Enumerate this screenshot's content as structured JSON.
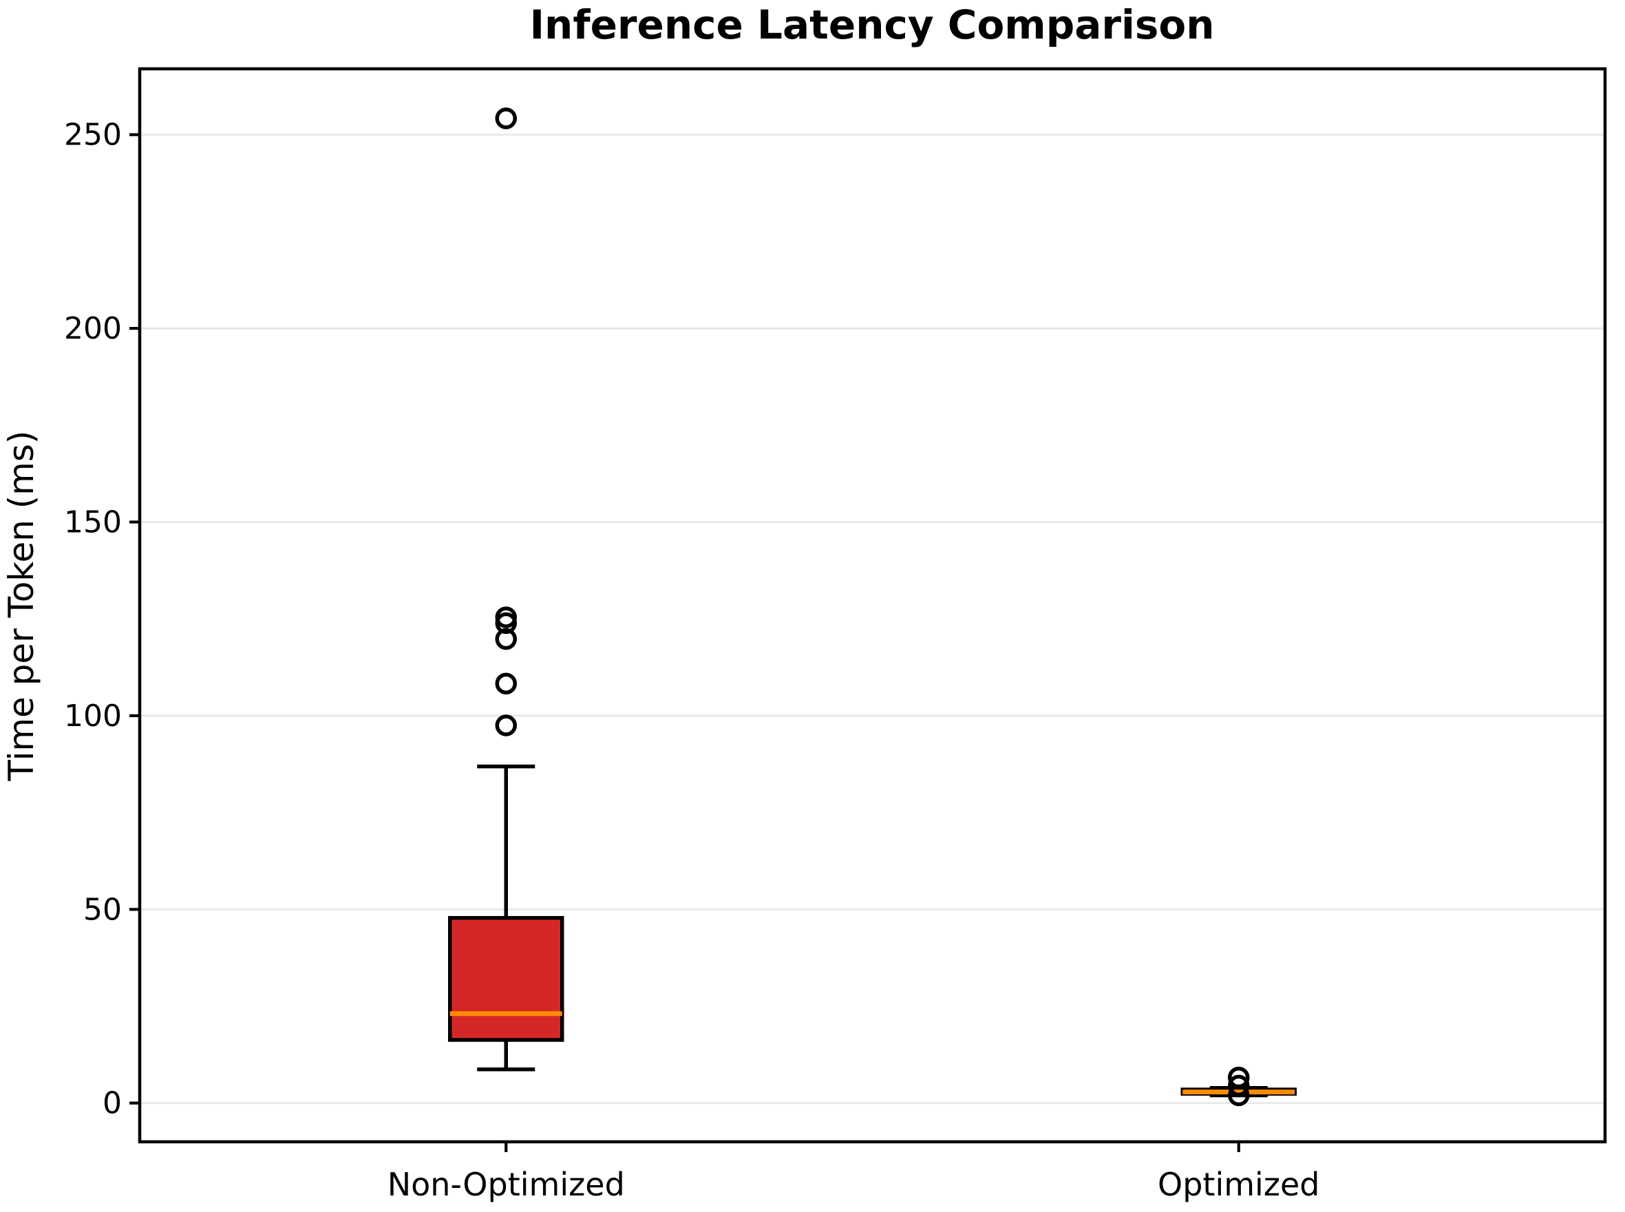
{
  "chart_data": {
    "type": "boxplot",
    "title": "Inference Latency Comparison",
    "ylabel": "Time per Token (ms)",
    "xlabel": "",
    "categories": [
      "Non-Optimized",
      "Optimized"
    ],
    "yticks": [
      0,
      50,
      100,
      150,
      200,
      250
    ],
    "ylim": [
      -10,
      267
    ],
    "grid": "horizontal-light",
    "legend": "none",
    "colors": {
      "non_optimized_box_fill": "#d62728",
      "optimized_box_fill": "#ff8c00",
      "median_line": "#ff8c00",
      "box_edge": "#000000",
      "gridline": "#e8e8e8",
      "background": "#ffffff"
    },
    "series": [
      {
        "label": "Non-Optimized",
        "whislo": 8.7,
        "q1": 16.3,
        "med": 23.1,
        "q3": 47.8,
        "whishi": 86.9,
        "fliers": [
          97.5,
          108.3,
          119.8,
          123.9,
          125.4,
          254.2
        ],
        "box_fill": "#d62728"
      },
      {
        "label": "Optimized",
        "whislo": 2.0,
        "q1": 2.4,
        "med": 2.85,
        "q3": 3.5,
        "whishi": 3.9,
        "fliers": [
          2.0,
          4.5,
          6.6
        ],
        "box_fill": "#ff8c00"
      }
    ]
  }
}
